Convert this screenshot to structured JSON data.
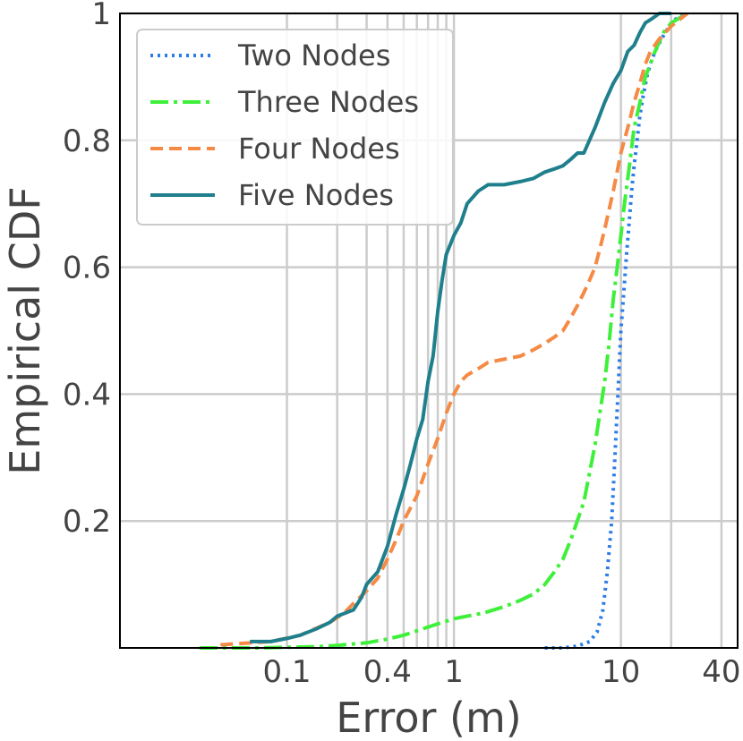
{
  "chart_data": {
    "type": "line",
    "xlabel": "Error (m)",
    "ylabel": "Empirical CDF",
    "xscale": "log",
    "xlim": [
      0.01,
      50
    ],
    "ylim": [
      0,
      1
    ],
    "x_ticks": [
      {
        "value": 0.1,
        "label": "0.1"
      },
      {
        "value": 0.4,
        "label": "0.4"
      },
      {
        "value": 1,
        "label": "1"
      },
      {
        "value": 10,
        "label": "10"
      },
      {
        "value": 40,
        "label": "40"
      }
    ],
    "x_gridlines": [
      0.1,
      0.2,
      0.3,
      0.4,
      0.5,
      0.6,
      0.7,
      0.8,
      0.9,
      1,
      10,
      20,
      40
    ],
    "y_ticks": [
      {
        "value": 0.2,
        "label": "0.2"
      },
      {
        "value": 0.4,
        "label": "0.4"
      },
      {
        "value": 0.6,
        "label": "0.6"
      },
      {
        "value": 0.8,
        "label": "0.8"
      },
      {
        "value": 1.0,
        "label": "1"
      }
    ],
    "grid": true,
    "legend_position": "top-left",
    "series": [
      {
        "name": "Two Nodes",
        "color": "#2c7ce8",
        "style": "dotted",
        "x": [
          3.5,
          4.5,
          5.5,
          6.5,
          7.2,
          7.8,
          8.3,
          8.8,
          9.2,
          9.6,
          10.0,
          10.4,
          10.8,
          11.2,
          11.6,
          12.0,
          12.5,
          13.0,
          13.6,
          14.3,
          15.0,
          16.0,
          17.5,
          19.0,
          21.0,
          24.0
        ],
        "y": [
          0.0,
          0.0,
          0.003,
          0.01,
          0.025,
          0.06,
          0.12,
          0.2,
          0.3,
          0.4,
          0.5,
          0.56,
          0.62,
          0.67,
          0.72,
          0.76,
          0.8,
          0.84,
          0.87,
          0.9,
          0.92,
          0.94,
          0.96,
          0.975,
          0.99,
          1.0
        ]
      },
      {
        "name": "Three Nodes",
        "color": "#3ef03a",
        "style": "dashdot",
        "x": [
          0.03,
          0.07,
          0.1,
          0.15,
          0.2,
          0.3,
          0.4,
          0.5,
          0.6,
          0.8,
          1.0,
          1.5,
          2.0,
          2.5,
          3.0,
          3.5,
          4.0,
          4.5,
          5.0,
          6.0,
          7.0,
          8.0,
          8.5,
          9.0,
          9.5,
          10.0,
          10.5,
          11.0,
          11.5,
          12.0,
          13.0,
          14.0,
          15.0,
          16.0,
          18.0,
          20.0,
          25.0
        ],
        "y": [
          0.0,
          0.0,
          0.001,
          0.002,
          0.004,
          0.008,
          0.014,
          0.02,
          0.027,
          0.038,
          0.046,
          0.055,
          0.065,
          0.075,
          0.085,
          0.1,
          0.12,
          0.14,
          0.17,
          0.23,
          0.32,
          0.42,
          0.48,
          0.55,
          0.6,
          0.65,
          0.7,
          0.74,
          0.78,
          0.82,
          0.86,
          0.9,
          0.92,
          0.94,
          0.97,
          0.985,
          1.0
        ]
      },
      {
        "name": "Four Nodes",
        "color": "#f58a45",
        "style": "dashed",
        "x": [
          0.04,
          0.08,
          0.12,
          0.18,
          0.22,
          0.25,
          0.3,
          0.35,
          0.4,
          0.45,
          0.5,
          0.6,
          0.7,
          0.8,
          0.9,
          1.0,
          1.1,
          1.2,
          1.4,
          1.6,
          2.0,
          2.5,
          3.0,
          3.5,
          4.0,
          4.5,
          5.0,
          5.5,
          6.0,
          6.5,
          7.0,
          7.5,
          8.0,
          9.0,
          10.0,
          11.0,
          12.0,
          13.0,
          14.0,
          15.0,
          17.0,
          20.0,
          25.0
        ],
        "y": [
          0.005,
          0.01,
          0.02,
          0.04,
          0.055,
          0.07,
          0.09,
          0.11,
          0.14,
          0.17,
          0.2,
          0.24,
          0.29,
          0.33,
          0.37,
          0.4,
          0.42,
          0.43,
          0.44,
          0.45,
          0.455,
          0.46,
          0.47,
          0.48,
          0.49,
          0.5,
          0.52,
          0.54,
          0.56,
          0.58,
          0.6,
          0.63,
          0.66,
          0.72,
          0.78,
          0.82,
          0.86,
          0.89,
          0.92,
          0.94,
          0.96,
          0.98,
          1.0
        ]
      },
      {
        "name": "Five Nodes",
        "color": "#1f7f8c",
        "style": "solid",
        "x": [
          0.06,
          0.08,
          0.1,
          0.12,
          0.15,
          0.18,
          0.2,
          0.25,
          0.28,
          0.3,
          0.35,
          0.4,
          0.45,
          0.5,
          0.55,
          0.6,
          0.65,
          0.7,
          0.75,
          0.8,
          0.85,
          0.9,
          1.0,
          1.1,
          1.2,
          1.4,
          1.6,
          2.0,
          2.5,
          3.0,
          3.5,
          4.0,
          4.5,
          5.0,
          5.5,
          6.0,
          7.0,
          8.0,
          9.0,
          10.0,
          11.0,
          12.0,
          13.0,
          14.0,
          15.0,
          17.0,
          20.0
        ],
        "y": [
          0.01,
          0.01,
          0.015,
          0.02,
          0.03,
          0.04,
          0.05,
          0.06,
          0.08,
          0.1,
          0.12,
          0.16,
          0.21,
          0.25,
          0.29,
          0.33,
          0.36,
          0.42,
          0.46,
          0.53,
          0.58,
          0.62,
          0.65,
          0.67,
          0.7,
          0.72,
          0.73,
          0.73,
          0.735,
          0.74,
          0.75,
          0.755,
          0.76,
          0.77,
          0.78,
          0.78,
          0.82,
          0.86,
          0.89,
          0.91,
          0.94,
          0.95,
          0.97,
          0.985,
          0.99,
          1.0,
          1.0
        ]
      }
    ]
  }
}
